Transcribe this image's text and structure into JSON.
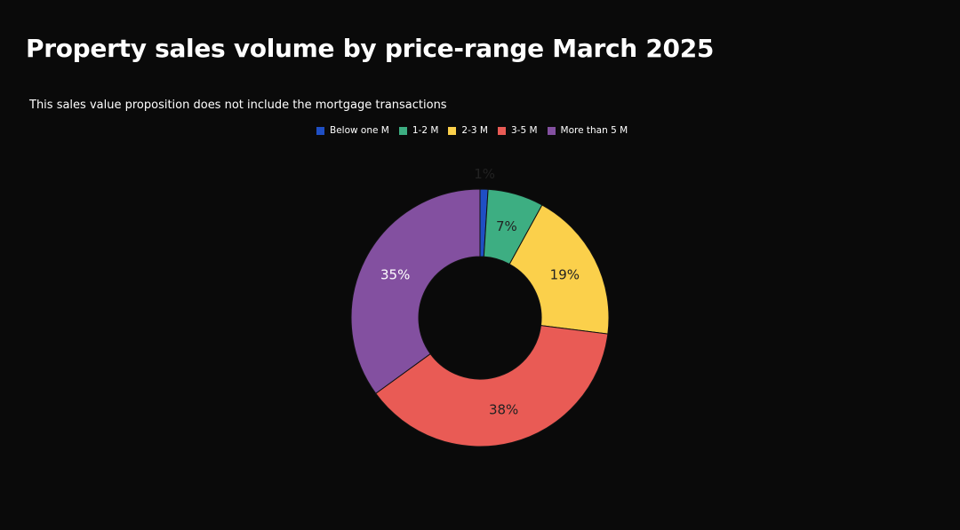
{
  "title": "Property sales volume by price-range March 2025",
  "subtitle": "This sales value proposition does not include the mortgage transactions",
  "chart_data": {
    "type": "pie",
    "donut": true,
    "title": "Property sales volume by price-range March 2025",
    "subtitle": "This sales value proposition does not include the mortgage transactions",
    "legend_position": "top",
    "categories": [
      "Below one M",
      "1-2 M",
      "2-3 M",
      "3-5 M",
      "More than 5 M"
    ],
    "values": [
      1,
      7,
      19,
      38,
      35
    ],
    "labels": [
      "1%",
      "7%",
      "19%",
      "38%",
      "35%"
    ],
    "colors": [
      "#1f4fc4",
      "#3dae82",
      "#fbd04b",
      "#e95b55",
      "#8350a0"
    ],
    "label_colors": [
      "#222222",
      "#222222",
      "#222222",
      "#222222",
      "#ffffff"
    ]
  }
}
